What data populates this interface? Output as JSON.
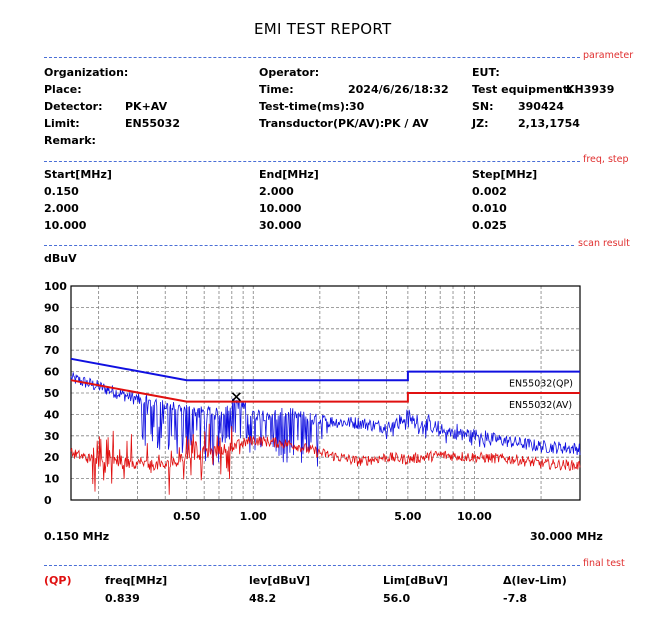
{
  "report_title": "EMI TEST REPORT",
  "sections": {
    "parameter": "parameter",
    "freq_step": "freq, step",
    "scan_result": "scan result",
    "final_test": "final test"
  },
  "params": {
    "organization_label": "Organization:",
    "place_label": "Place:",
    "detector_label": "Detector:",
    "detector_value": "PK+AV",
    "limit_label": "Limit:",
    "limit_value": "EN55032",
    "remark_label": "Remark:",
    "operator_label": "Operator:",
    "time_label": "Time:",
    "time_value": "2024/6/26/18:32",
    "test_time_label": "Test-time(ms):",
    "test_time_value": "30",
    "transductor_label": "Transductor(PK/AV):",
    "transductor_value": "PK  /  AV",
    "eut_label": "EUT:",
    "test_equipment_label": "Test equipment:",
    "test_equipment_value": "KH3939",
    "sn_label": "SN:",
    "sn_value": "390424",
    "jz_label": "JZ:",
    "jz_value": "2,13,1754"
  },
  "freq_step": {
    "headers": [
      "Start[MHz]",
      "End[MHz]",
      "Step[MHz]"
    ],
    "rows": [
      [
        "0.150",
        "2.000",
        "0.002"
      ],
      [
        "2.000",
        "10.000",
        "0.010"
      ],
      [
        "10.000",
        "30.000",
        "0.025"
      ]
    ]
  },
  "chart_data": {
    "type": "line",
    "ylabel": "dBuV",
    "y_ticks": [
      "100",
      "90",
      "80",
      "70",
      "60",
      "50",
      "40",
      "30",
      "20",
      "10",
      "0"
    ],
    "x_tick_labels": [
      "0.50",
      "1.00",
      "5.00",
      "10.00"
    ],
    "x_start_label": "0.150 MHz",
    "x_end_label": "30.000 MHz",
    "x_scale": "log",
    "xlim": [
      0.15,
      30
    ],
    "ylim": [
      0,
      100
    ],
    "grid": true,
    "colors": {
      "qp": "#1010e0",
      "av": "#e01010"
    },
    "limit_labels": {
      "qp": "EN55032(QP)",
      "av": "EN55032(AV)"
    },
    "limit_qp": {
      "x": [
        0.15,
        0.5,
        5,
        5,
        30
      ],
      "y": [
        66,
        56,
        56,
        60,
        60
      ]
    },
    "limit_av": {
      "x": [
        0.15,
        0.5,
        5,
        5,
        30
      ],
      "y": [
        56,
        46,
        46,
        50,
        50
      ]
    },
    "peak_trace": {
      "x": [
        0.15,
        0.2,
        0.3,
        0.4,
        0.5,
        0.7,
        0.84,
        1.0,
        1.5,
        2.0,
        3.0,
        4.0,
        5.0,
        7.0,
        10.0,
        15.0,
        20.0,
        30.0
      ],
      "y": [
        57,
        53,
        47,
        44,
        42,
        40,
        46,
        40,
        40,
        37,
        36,
        34,
        38,
        32,
        30,
        27,
        25,
        24
      ]
    },
    "avg_trace": {
      "x": [
        0.15,
        0.2,
        0.3,
        0.4,
        0.5,
        0.7,
        1.0,
        1.5,
        2.0,
        3.0,
        4.0,
        5.0,
        7.0,
        10.0,
        15.0,
        20.0,
        30.0
      ],
      "y": [
        22,
        18,
        17,
        16,
        20,
        23,
        28,
        26,
        22,
        18,
        20,
        19,
        21,
        20,
        19,
        17,
        16
      ]
    },
    "marker": {
      "x": 0.839,
      "y": 48.2,
      "symbol": "x"
    }
  },
  "final_test": {
    "tag": "(QP)",
    "headers": [
      "freq[MHz]",
      "lev[dBuV]",
      "Lim[dBuV]",
      "Δ(lev-Lim)"
    ],
    "values": [
      "0.839",
      "48.2",
      "56.0",
      "-7.8"
    ]
  }
}
